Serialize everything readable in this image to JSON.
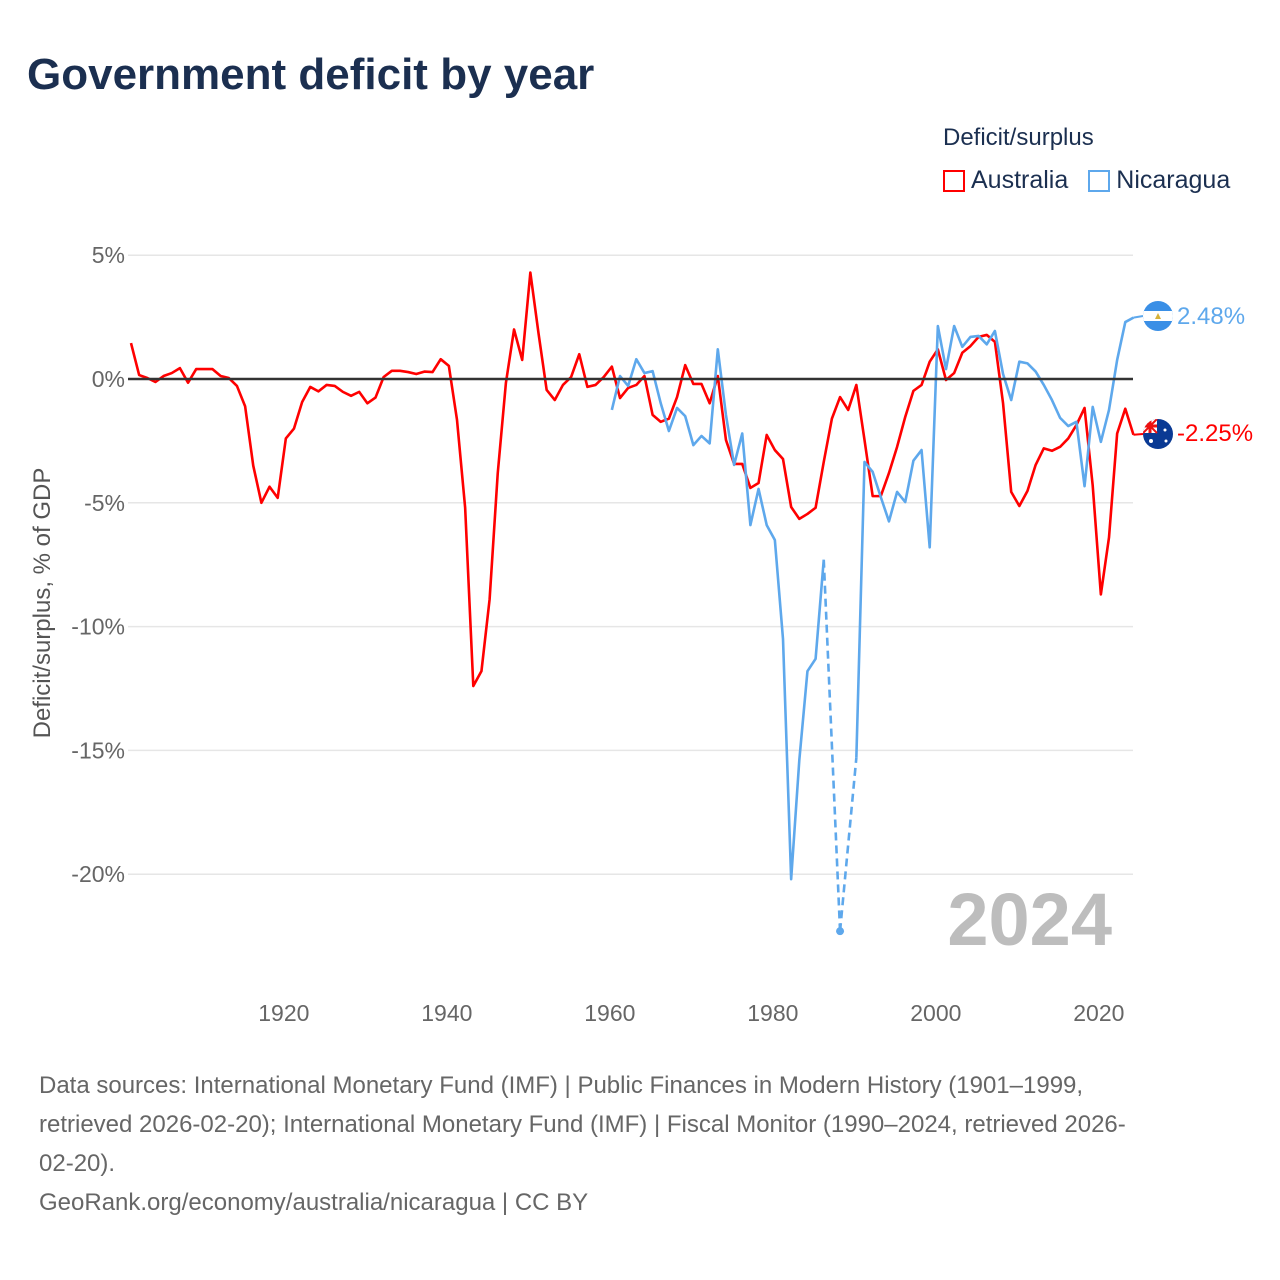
{
  "title": "Government deficit by year",
  "legend": {
    "title": "Deficit/surplus",
    "items": [
      {
        "label": "Australia",
        "color": "#ff0000"
      },
      {
        "label": "Nicaragua",
        "color": "#5ea8ec"
      }
    ]
  },
  "year_label": "2024",
  "footer": {
    "lines": [
      "Data sources: International Monetary Fund (IMF) | Public Finances in Modern History (1901–1999,",
      "retrieved 2026-02-20); International Monetary Fund (IMF) | Fiscal Monitor (1990–2024, retrieved 2026-",
      "02-20).",
      "GeoRank.org/economy/australia/nicaragua | CC BY"
    ]
  },
  "chart_data": {
    "type": "line",
    "title": "Government deficit by year",
    "xlabel": "",
    "ylabel": "Deficit/surplus, % of GDP",
    "ylim": [
      -24,
      5.5
    ],
    "xlim": [
      1901,
      2024
    ],
    "yticks": [
      5,
      0,
      -5,
      -10,
      -15,
      -20
    ],
    "ytick_labels": [
      "5%",
      "0%",
      "-5%",
      "-10%",
      "-15%",
      "-20%"
    ],
    "xticks": [
      1920,
      1940,
      1960,
      1980,
      2000,
      2020
    ],
    "xtick_labels": [
      "1920",
      "1940",
      "1960",
      "1980",
      "2000",
      "2020"
    ],
    "grid": true,
    "legend_position": "top-right",
    "series": [
      {
        "name": "Australia",
        "color": "#ff0000",
        "start_year": 1901,
        "end_label": "-2.25%",
        "values": [
          1.45,
          0.16,
          0.04,
          -0.12,
          0.12,
          0.24,
          0.44,
          -0.15,
          0.4,
          0.4,
          0.4,
          0.12,
          0.04,
          -0.28,
          -1.1,
          -3.5,
          -5.0,
          -4.35,
          -4.8,
          -2.4,
          -2.0,
          -0.93,
          -0.32,
          -0.5,
          -0.24,
          -0.28,
          -0.52,
          -0.68,
          -0.52,
          -0.98,
          -0.75,
          0.08,
          0.33,
          0.33,
          0.28,
          0.2,
          0.3,
          0.28,
          0.8,
          0.53,
          -1.65,
          -5.2,
          -12.4,
          -11.8,
          -8.9,
          -3.8,
          -0.16,
          2.0,
          0.77,
          4.3,
          1.85,
          -0.44,
          -0.85,
          -0.24,
          0.08,
          1.0,
          -0.32,
          -0.24,
          0.08,
          0.5,
          -0.77,
          -0.36,
          -0.24,
          0.12,
          -1.45,
          -1.73,
          -1.6,
          -0.73,
          0.56,
          -0.2,
          -0.2,
          -0.98,
          0.12,
          -2.46,
          -3.43,
          -3.43,
          -4.4,
          -4.2,
          -2.26,
          -2.87,
          -3.23,
          -5.17,
          -5.65,
          -5.45,
          -5.2,
          -3.35,
          -1.6,
          -0.73,
          -1.25,
          -0.24,
          -2.46,
          -4.73,
          -4.73,
          -3.8,
          -2.74,
          -1.53,
          -0.48,
          -0.24,
          0.7,
          1.2,
          -0.04,
          0.24,
          1.06,
          1.33,
          1.7,
          1.78,
          1.5,
          -0.98,
          -4.56,
          -5.13,
          -4.52,
          -3.47,
          -2.8,
          -2.9,
          -2.74,
          -2.4,
          -1.86,
          -1.17,
          -4.3,
          -8.7,
          -6.4,
          -2.2,
          -1.2,
          -2.25
        ]
      },
      {
        "name": "Nicaragua",
        "color": "#5ea8ec",
        "start_year": 1960,
        "end_label": "2.48%",
        "values": [
          -1.25,
          0.12,
          -0.28,
          0.8,
          0.24,
          0.32,
          -0.98,
          -2.1,
          -1.17,
          -1.5,
          -2.67,
          -2.3,
          -2.6,
          1.2,
          -1.45,
          -3.47,
          -2.2,
          -5.9,
          -4.44,
          -5.9,
          -6.5,
          -10.5,
          -20.2,
          -15.4,
          -11.8,
          -11.3,
          -7.3,
          null,
          -22.3,
          null,
          -15.3,
          -3.35,
          -3.75,
          -4.77,
          -5.75,
          -4.56,
          -4.97,
          -3.3,
          -2.87,
          -6.8,
          2.14,
          0.4,
          2.14,
          1.3,
          1.7,
          1.74,
          1.4,
          1.94,
          0.2,
          -0.85,
          0.7,
          0.63,
          0.3,
          -0.24,
          -0.85,
          -1.57,
          -1.9,
          -1.73,
          -4.33,
          -1.13,
          -2.54,
          -1.25,
          0.77,
          2.3,
          2.48
        ]
      }
    ]
  }
}
